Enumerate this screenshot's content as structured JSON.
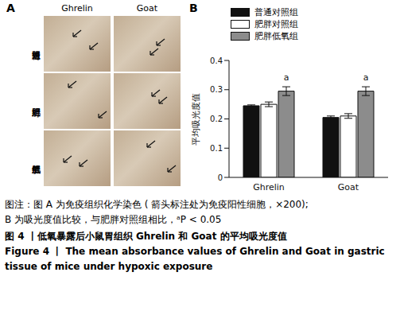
{
  "panel_a": {
    "label": "A",
    "columns": [
      "Ghrelin",
      "Goat"
    ],
    "rows": [
      "普通对照组",
      "肥胖对照组",
      "肥胖低氧组"
    ]
  },
  "chart_data": {
    "type": "bar",
    "panel_label": "B",
    "y_label": "平均吸光度值",
    "categories": [
      "Ghrelin",
      "Goat"
    ],
    "series": [
      {
        "name": "普通对照组",
        "color": "#111111",
        "values": [
          0.245,
          0.205
        ],
        "errors": [
          0.003,
          0.005
        ]
      },
      {
        "name": "肥胖对照组",
        "color": "#ffffff",
        "values": [
          0.25,
          0.21
        ],
        "errors": [
          0.008,
          0.008
        ]
      },
      {
        "name": "肥胖低氧组",
        "color": "#8c8c8c",
        "values": [
          0.295,
          0.295
        ],
        "errors": [
          0.015,
          0.015
        ],
        "annotations": [
          "a",
          "a"
        ]
      }
    ],
    "ylim": [
      0,
      0.4
    ],
    "yticks": [
      0,
      0.1,
      0.2,
      0.3,
      0.4
    ],
    "legend": "top",
    "grid": false
  },
  "caption": {
    "lines": [
      "图注：图 A 为免疫组织化学染色 ( 箭头标注处为免疫阳性细胞，×200);",
      "B 为吸光度值比较，与肥胖对照组相比，ᵃP < 0.05"
    ],
    "title_cn": "图 4 丨低氧暴露后小鼠胃组织 Ghrelin 和 Goat 的平均吸光度值",
    "title_en": [
      "Figure 4 丨 The mean absorbance values of Ghrelin and Goat in gastric",
      "tissue of mice under hypoxic exposure"
    ]
  }
}
